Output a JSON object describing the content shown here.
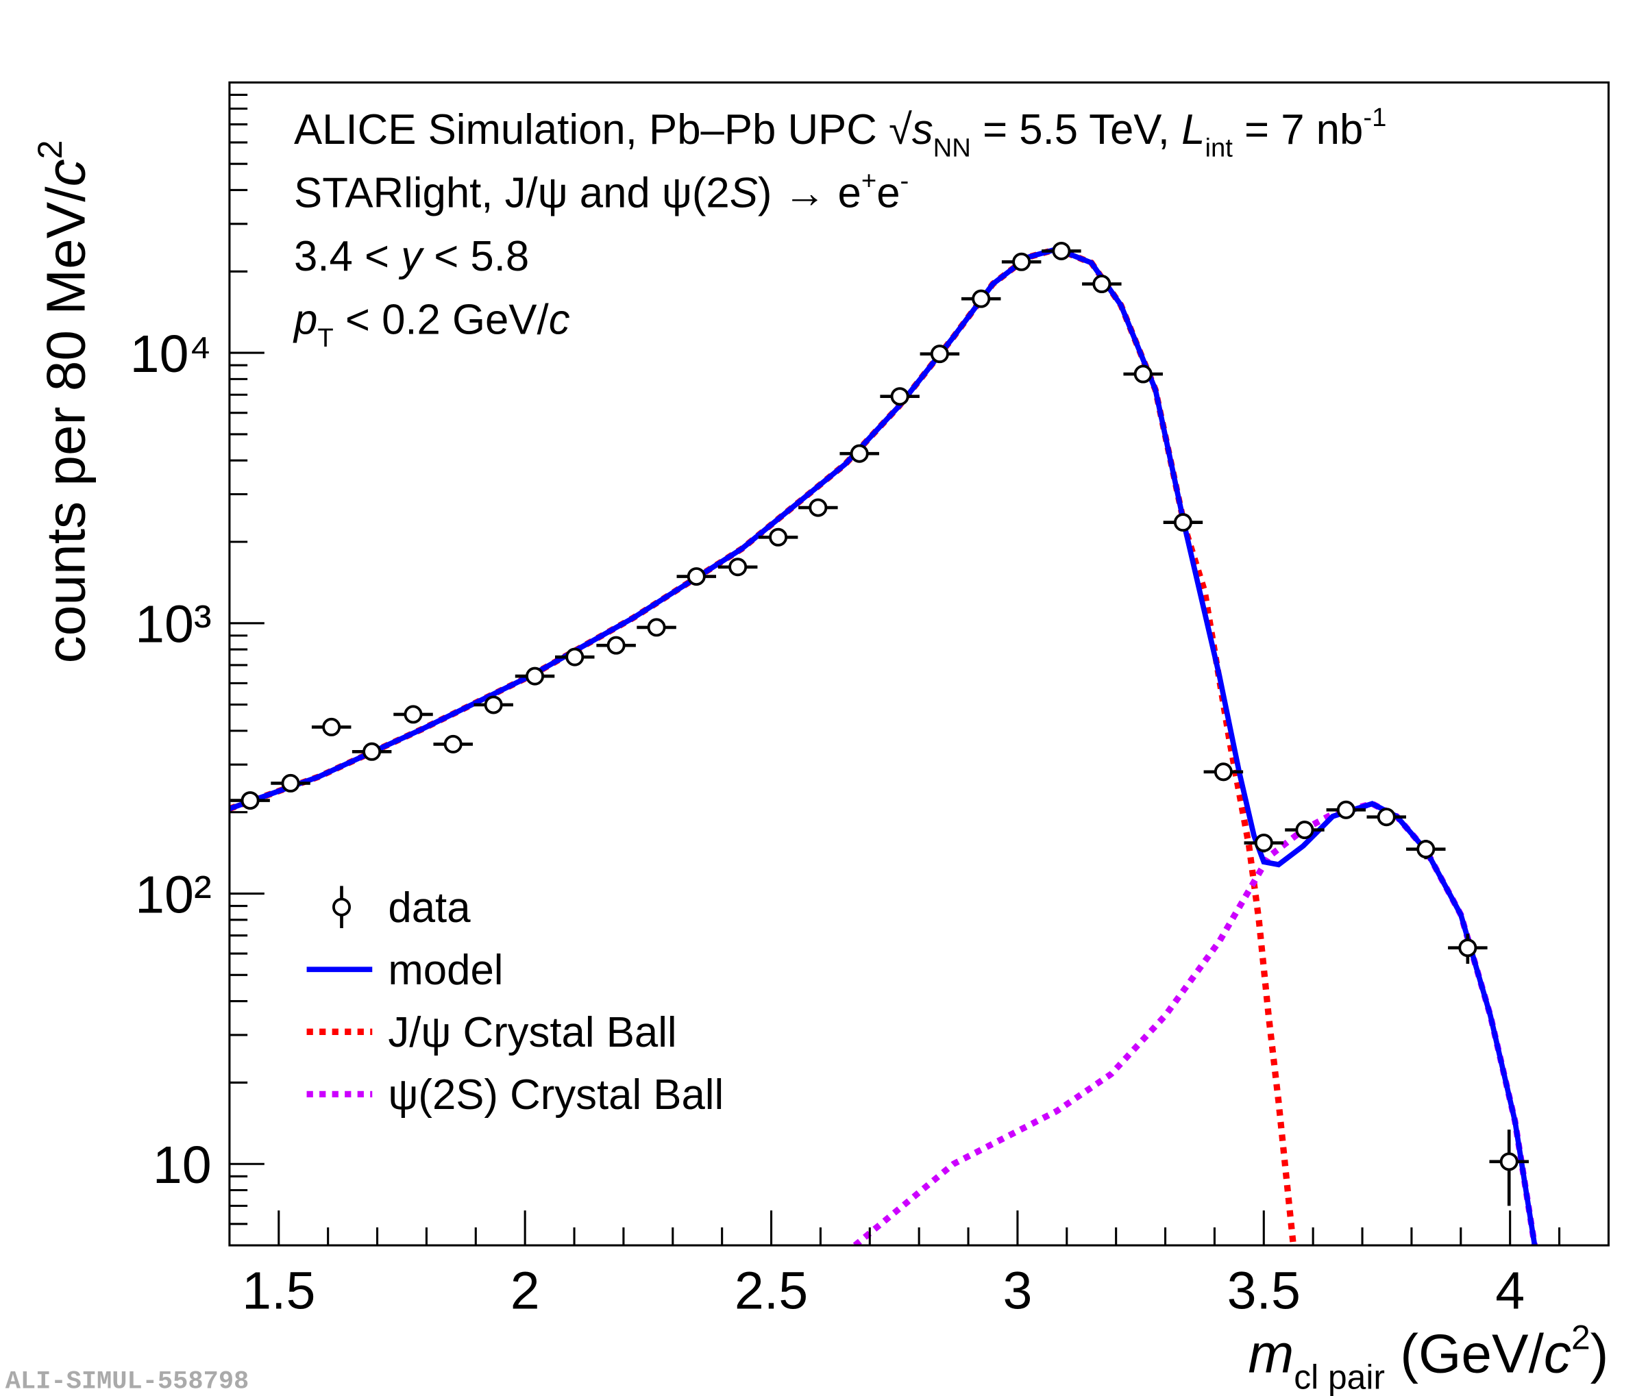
{
  "chart_data": {
    "type": "scatter",
    "annotations": [
      [
        {
          "text": "ALICE Simulation, Pb–Pb UPC "
        },
        {
          "text": "√"
        },
        {
          "text": "s",
          "style": "i"
        },
        {
          "text": "NN",
          "style": "sub"
        },
        {
          "text": " = 5.5 TeV, "
        },
        {
          "text": "L",
          "style": "i"
        },
        {
          "text": "int",
          "style": "sub"
        },
        {
          "text": " = 7 nb"
        },
        {
          "text": "-1",
          "style": "sup"
        }
      ],
      [
        {
          "text": "STARlight, J/ψ and ψ(2"
        },
        {
          "text": "S",
          "style": "i"
        },
        {
          "text": ") → e"
        },
        {
          "text": "+",
          "style": "sup"
        },
        {
          "text": "e"
        },
        {
          "text": "-",
          "style": "sup"
        }
      ],
      [
        {
          "text": "3.4 < "
        },
        {
          "text": "y",
          "style": "i"
        },
        {
          "text": " < 5.8"
        }
      ],
      [
        {
          "text": "p",
          "style": "i"
        },
        {
          "text": "T",
          "style": "sub"
        },
        {
          "text": " < 0.2 GeV/"
        },
        {
          "text": "c",
          "style": "i"
        }
      ]
    ],
    "y_label": [
      {
        "text": "counts per 80 MeV/"
      },
      {
        "text": "c",
        "style": "i"
      },
      {
        "text": "2",
        "style": "sup"
      }
    ],
    "x_label": [
      {
        "text": "m",
        "style": "i"
      },
      {
        "text": "cl pair",
        "style": "sub"
      },
      {
        "text": " (GeV/"
      },
      {
        "text": "c",
        "style": "i"
      },
      {
        "text": "2",
        "style": "sup"
      },
      {
        "text": ")"
      }
    ],
    "watermark": "ALI-SIMUL-558798",
    "xlim": [
      1.4,
      4.2
    ],
    "ylim": [
      5,
      100000
    ],
    "log_y": true,
    "legend": "lower left",
    "xticks": [
      1.5,
      2,
      2.5,
      3,
      3.5,
      4
    ],
    "xticks_minor": [
      1.6,
      1.7,
      1.8,
      1.9,
      2.1,
      2.2,
      2.3,
      2.4,
      2.6,
      2.7,
      2.8,
      2.9,
      3.1,
      3.2,
      3.3,
      3.4,
      3.6,
      3.7,
      3.8,
      3.9,
      4.1
    ],
    "yticks": [
      10,
      {
        "value": 100,
        "label": "10²"
      },
      {
        "value": 1000,
        "label": "10³"
      },
      {
        "value": 10000,
        "label": "10⁴"
      }
    ],
    "yticks_minor": [
      6,
      7,
      8,
      9,
      20,
      30,
      40,
      50,
      60,
      70,
      80,
      90,
      200,
      300,
      400,
      500,
      600,
      700,
      800,
      900,
      2000,
      3000,
      4000,
      5000,
      6000,
      7000,
      8000,
      9000,
      20000,
      30000,
      40000,
      50000,
      60000,
      70000,
      80000,
      90000
    ],
    "series": [
      {
        "name": "data",
        "color": "#000000",
        "style": "markers",
        "xerr": 0.04,
        "x": [
          1.442,
          1.524,
          1.607,
          1.689,
          1.773,
          1.854,
          1.936,
          2.02,
          2.101,
          2.185,
          2.267,
          2.348,
          2.432,
          2.514,
          2.595,
          2.679,
          2.761,
          2.842,
          2.926,
          3.008,
          3.089,
          3.171,
          3.255,
          3.336,
          3.418,
          3.5,
          3.583,
          3.667,
          3.749,
          3.829,
          3.914,
          3.998
        ],
        "values": [
          221,
          256,
          413,
          335,
          460,
          357,
          499,
          637,
          750,
          828,
          965,
          1489,
          1614,
          2080,
          2676,
          4240,
          6900,
          9910,
          15850,
          21700,
          23800,
          17980,
          8350,
          2360,
          282,
          154,
          172,
          204,
          192,
          146,
          63,
          10.2
        ],
        "errors": [
          15,
          16,
          20,
          18,
          21,
          19,
          22,
          25,
          27,
          29,
          31,
          39,
          40,
          46,
          52,
          65,
          83,
          100,
          126,
          147,
          154,
          134,
          91,
          49,
          17,
          12,
          13,
          14,
          14,
          12,
          8,
          3.2
        ]
      },
      {
        "name": "model",
        "color": "#0000ff",
        "style": "solid",
        "x": [
          1.4,
          1.58,
          1.79,
          2.01,
          2.22,
          2.44,
          2.65,
          2.76,
          2.87,
          2.95,
          3.02,
          3.08,
          3.15,
          3.21,
          3.28,
          3.34,
          3.41,
          3.45,
          3.48,
          3.5,
          3.53,
          3.58,
          3.64,
          3.72,
          3.77,
          3.83,
          3.9,
          3.96,
          4.01,
          4.05
        ],
        "values": [
          206,
          270,
          405,
          637,
          1047,
          1884,
          3873,
          6370,
          11450,
          17990,
          22540,
          24200,
          21530,
          15000,
          7300,
          2250,
          637,
          282,
          164,
          131,
          128,
          150,
          193,
          215,
          193,
          144,
          83.6,
          35.4,
          14.4,
          5
        ]
      },
      {
        "name": "J/ψ Crystal Ball",
        "color": "#ff0000",
        "style": "dotted",
        "x": [
          1.4,
          1.58,
          1.79,
          2.01,
          2.22,
          2.44,
          2.65,
          2.76,
          2.87,
          2.95,
          3.02,
          3.08,
          3.15,
          3.21,
          3.28,
          3.34,
          3.38,
          3.43,
          3.47,
          3.49,
          3.51,
          3.53,
          3.56
        ],
        "values": [
          206,
          270,
          405,
          637,
          1047,
          1884,
          3873,
          6370,
          11450,
          17990,
          22540,
          24200,
          21530,
          15000,
          7300,
          2250,
          1312,
          371,
          150,
          80,
          35,
          17,
          5
        ]
      },
      {
        "name": "ψ(2S) Crystal Ball",
        "color": "#cc00ff",
        "style": "dotted",
        "x": [
          2.67,
          2.87,
          3.08,
          3.19,
          3.3,
          3.41,
          3.51,
          3.58,
          3.64,
          3.72,
          3.77,
          3.83,
          3.9,
          3.96,
          4.01,
          4.05
        ],
        "values": [
          5,
          10,
          15.7,
          21.5,
          35.4,
          66.7,
          137,
          172,
          197,
          215,
          193,
          144,
          83.6,
          35.4,
          14.4,
          5
        ]
      }
    ]
  }
}
